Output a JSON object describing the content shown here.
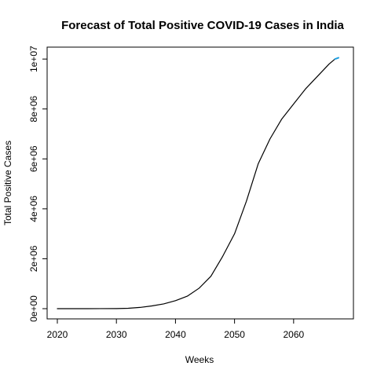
{
  "chart_data": {
    "type": "line",
    "title": "Forecast of Total Positive COVID-19 Cases in India",
    "xlabel": "Weeks",
    "ylabel": "Total Positive Cases",
    "xlim": [
      2020,
      2068
    ],
    "ylim": [
      0,
      10100000
    ],
    "x_ticks": [
      2020,
      2030,
      2040,
      2050,
      2060
    ],
    "y_ticks": [
      0,
      2000000,
      4000000,
      6000000,
      8000000,
      10000000
    ],
    "x_tick_labels": [
      "2020",
      "2030",
      "2040",
      "2050",
      "2060"
    ],
    "y_tick_labels": [
      "0e+00",
      "2e+06",
      "4e+06",
      "6e+06",
      "8e+06",
      "1e+07"
    ],
    "grid": false,
    "series": [
      {
        "color": "#000000",
        "x": [
          2020,
          2025,
          2030,
          2032,
          2034,
          2036,
          2038,
          2040,
          2042,
          2044,
          2046,
          2048,
          2050,
          2052,
          2054,
          2056,
          2058,
          2060,
          2062,
          2064,
          2066,
          2067
        ],
        "y": [
          0,
          0,
          5000,
          15000,
          50000,
          110000,
          190000,
          320000,
          500000,
          820000,
          1300000,
          2100000,
          3000000,
          4300000,
          5800000,
          6800000,
          7600000,
          8200000,
          8800000,
          9300000,
          9800000,
          10000000
        ]
      },
      {
        "color": "#1f9fe0",
        "x": [
          2067,
          2067.6
        ],
        "y": [
          10000000,
          10050000
        ]
      }
    ]
  }
}
